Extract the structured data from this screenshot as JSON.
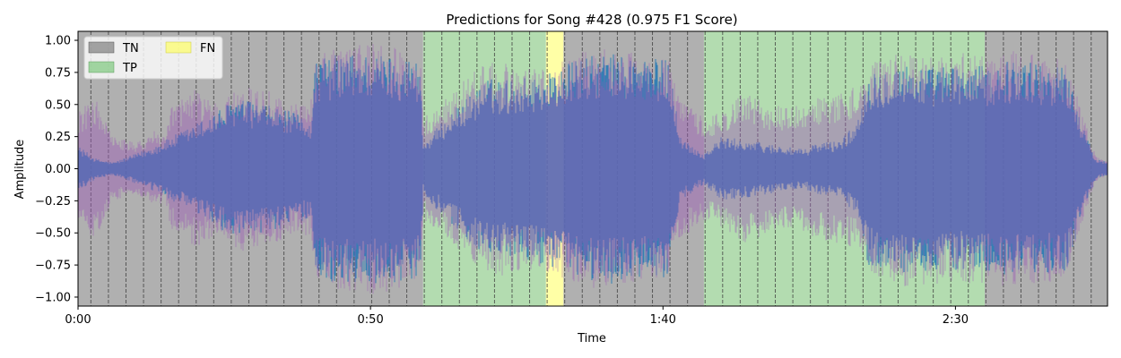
{
  "chart_data": {
    "type": "area",
    "title": "Predictions for Song #428 (0.975 F1 Score)",
    "xlabel": "Time",
    "ylabel": "Amplitude",
    "xlim": [
      0,
      176
    ],
    "ylim": [
      -1.07,
      1.07
    ],
    "x_ticks": [
      {
        "value": 0,
        "label": "0:00"
      },
      {
        "value": 50,
        "label": "0:50"
      },
      {
        "value": 100,
        "label": "1:40"
      },
      {
        "value": 150,
        "label": "2:30"
      }
    ],
    "y_ticks": [
      {
        "value": 1.0,
        "label": "1.00"
      },
      {
        "value": 0.75,
        "label": "0.75"
      },
      {
        "value": 0.5,
        "label": "0.50"
      },
      {
        "value": 0.25,
        "label": "0.25"
      },
      {
        "value": 0.0,
        "label": "0.00"
      },
      {
        "value": -0.25,
        "label": "−0.25"
      },
      {
        "value": -0.5,
        "label": "−0.50"
      },
      {
        "value": -0.75,
        "label": "−0.75"
      },
      {
        "value": -1.0,
        "label": "−1.00"
      }
    ],
    "legend": {
      "placement": "upper-left",
      "entries": [
        {
          "label": "TN",
          "color": "#808080"
        },
        {
          "label": "TP",
          "color": "#7fc97f"
        },
        {
          "label": "FN",
          "color": "#ffff66"
        }
      ]
    },
    "regions": [
      {
        "label": "TN",
        "start": 0,
        "end": 59,
        "color": "#b0b0b0"
      },
      {
        "label": "TP",
        "start": 59,
        "end": 80,
        "color": "#b3dcb0"
      },
      {
        "label": "FN",
        "start": 80,
        "end": 83,
        "color": "#ffffa6"
      },
      {
        "label": "TN",
        "start": 83,
        "end": 107,
        "color": "#b0b0b0"
      },
      {
        "label": "TP",
        "start": 107,
        "end": 155,
        "color": "#b3dcb0"
      },
      {
        "label": "TN",
        "start": 155,
        "end": 176,
        "color": "#b0b0b0"
      }
    ],
    "beat_interval": 3.0,
    "beat_start": 2.2,
    "series": [
      {
        "color": "#1f77b4",
        "envelope": [
          [
            0,
            0.18
          ],
          [
            3,
            0.08
          ],
          [
            6,
            0.05
          ],
          [
            10,
            0.12
          ],
          [
            14,
            0.2
          ],
          [
            18,
            0.3
          ],
          [
            22,
            0.4
          ],
          [
            27,
            0.55
          ],
          [
            32,
            0.5
          ],
          [
            36,
            0.45
          ],
          [
            40,
            0.38
          ],
          [
            40.5,
            0.85
          ],
          [
            45,
            0.9
          ],
          [
            50,
            0.9
          ],
          [
            55,
            0.88
          ],
          [
            58.5,
            0.85
          ],
          [
            59,
            0.2
          ],
          [
            64,
            0.45
          ],
          [
            70,
            0.7
          ],
          [
            75,
            0.7
          ],
          [
            80,
            0.75
          ],
          [
            82,
            0.78
          ],
          [
            85,
            0.85
          ],
          [
            90,
            0.9
          ],
          [
            95,
            0.88
          ],
          [
            101,
            0.85
          ],
          [
            103,
            0.25
          ],
          [
            106,
            0.15
          ],
          [
            107,
            0.12
          ],
          [
            110,
            0.25
          ],
          [
            115,
            0.22
          ],
          [
            120,
            0.18
          ],
          [
            124,
            0.15
          ],
          [
            126,
            0.2
          ],
          [
            130,
            0.22
          ],
          [
            133,
            0.35
          ],
          [
            135,
            0.75
          ],
          [
            140,
            0.82
          ],
          [
            145,
            0.8
          ],
          [
            150,
            0.8
          ],
          [
            155,
            0.8
          ],
          [
            160,
            0.85
          ],
          [
            165,
            0.82
          ],
          [
            169,
            0.8
          ],
          [
            172,
            0.3
          ],
          [
            174,
            0.08
          ],
          [
            176,
            0.05
          ]
        ]
      },
      {
        "color": "#9b59b6",
        "envelope": [
          [
            0,
            0.45
          ],
          [
            3,
            0.55
          ],
          [
            6,
            0.25
          ],
          [
            10,
            0.2
          ],
          [
            13,
            0.3
          ],
          [
            15,
            0.25
          ],
          [
            16,
            0.5
          ],
          [
            20,
            0.62
          ],
          [
            24,
            0.5
          ],
          [
            28,
            0.65
          ],
          [
            33,
            0.6
          ],
          [
            37,
            0.5
          ],
          [
            40,
            0.55
          ],
          [
            40.5,
            0.88
          ],
          [
            45,
            0.95
          ],
          [
            50,
            0.98
          ],
          [
            55,
            0.95
          ],
          [
            58.5,
            0.85
          ],
          [
            59,
            0.4
          ],
          [
            63,
            0.55
          ],
          [
            68,
            0.8
          ],
          [
            72,
            0.85
          ],
          [
            76,
            0.78
          ],
          [
            80,
            0.8
          ],
          [
            82,
            0.85
          ],
          [
            85,
            0.9
          ],
          [
            90,
            0.95
          ],
          [
            95,
            0.9
          ],
          [
            101,
            0.85
          ],
          [
            103,
            0.55
          ],
          [
            107,
            0.4
          ],
          [
            110,
            0.45
          ],
          [
            114,
            0.6
          ],
          [
            118,
            0.5
          ],
          [
            122,
            0.48
          ],
          [
            126,
            0.55
          ],
          [
            130,
            0.6
          ],
          [
            134,
            0.65
          ],
          [
            136,
            0.85
          ],
          [
            140,
            0.92
          ],
          [
            145,
            0.9
          ],
          [
            150,
            0.9
          ],
          [
            155,
            0.9
          ],
          [
            160,
            0.92
          ],
          [
            165,
            0.9
          ],
          [
            169,
            0.85
          ],
          [
            172,
            0.4
          ],
          [
            174,
            0.1
          ],
          [
            176,
            0.05
          ]
        ]
      }
    ]
  }
}
